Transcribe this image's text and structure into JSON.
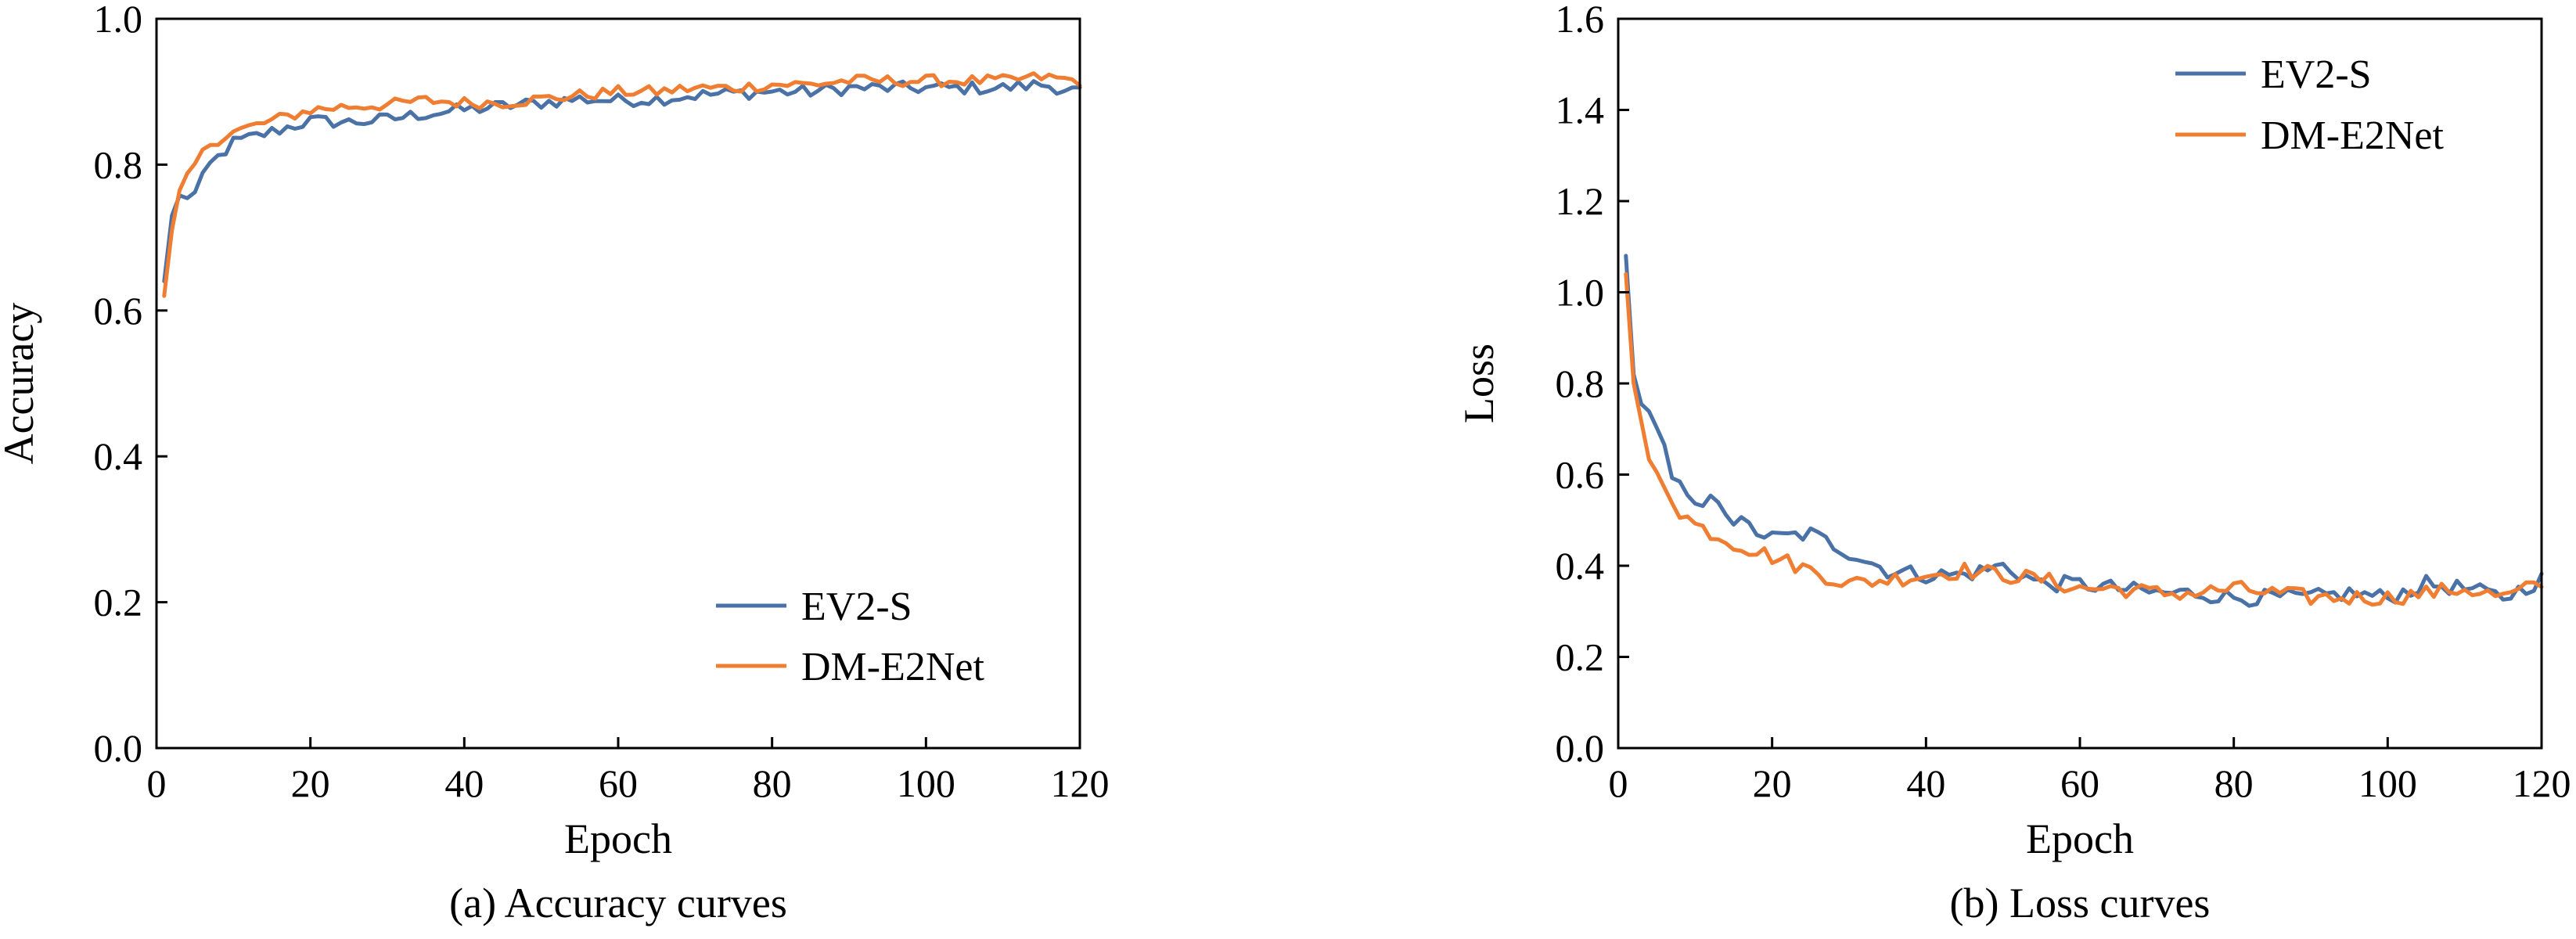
{
  "chart_data": [
    {
      "type": "line",
      "caption": "(a) Accuracy curves",
      "xlabel": "Epoch",
      "ylabel": "Accuracy",
      "xlim": [
        0,
        120
      ],
      "ylim": [
        0.0,
        1.0
      ],
      "xticks": [
        "0",
        "20",
        "40",
        "60",
        "80",
        "100",
        "120"
      ],
      "yticks": [
        "0.0",
        "0.2",
        "0.4",
        "0.6",
        "0.8",
        "1.0"
      ],
      "grid": false,
      "legend_position": "bottom-right",
      "series": [
        {
          "name": "EV2-S",
          "color": "#4a72a6",
          "anchors": [
            [
              1,
              0.64
            ],
            [
              2,
              0.73
            ],
            [
              3,
              0.755
            ],
            [
              5,
              0.76
            ],
            [
              7,
              0.8
            ],
            [
              10,
              0.83
            ],
            [
              15,
              0.845
            ],
            [
              20,
              0.86
            ],
            [
              25,
              0.858
            ],
            [
              30,
              0.862
            ],
            [
              35,
              0.87
            ],
            [
              40,
              0.875
            ],
            [
              45,
              0.88
            ],
            [
              50,
              0.885
            ],
            [
              55,
              0.89
            ],
            [
              60,
              0.888
            ],
            [
              65,
              0.89
            ],
            [
              70,
              0.895
            ],
            [
              75,
              0.898
            ],
            [
              80,
              0.9
            ],
            [
              85,
              0.9
            ],
            [
              90,
              0.905
            ],
            [
              95,
              0.905
            ],
            [
              100,
              0.905
            ],
            [
              105,
              0.905
            ],
            [
              110,
              0.905
            ],
            [
              115,
              0.91
            ],
            [
              120,
              0.9
            ]
          ],
          "noise": 0.009
        },
        {
          "name": "DM-E2Net",
          "color": "#ef7d32",
          "anchors": [
            [
              1,
              0.62
            ],
            [
              2,
              0.71
            ],
            [
              3,
              0.76
            ],
            [
              5,
              0.8
            ],
            [
              7,
              0.83
            ],
            [
              10,
              0.845
            ],
            [
              15,
              0.86
            ],
            [
              20,
              0.875
            ],
            [
              25,
              0.88
            ],
            [
              30,
              0.882
            ],
            [
              35,
              0.888
            ],
            [
              40,
              0.885
            ],
            [
              45,
              0.885
            ],
            [
              50,
              0.89
            ],
            [
              55,
              0.895
            ],
            [
              60,
              0.9
            ],
            [
              65,
              0.9
            ],
            [
              70,
              0.905
            ],
            [
              75,
              0.905
            ],
            [
              80,
              0.91
            ],
            [
              85,
              0.91
            ],
            [
              90,
              0.915
            ],
            [
              95,
              0.915
            ],
            [
              100,
              0.915
            ],
            [
              105,
              0.915
            ],
            [
              110,
              0.915
            ],
            [
              115,
              0.92
            ],
            [
              120,
              0.915
            ]
          ],
          "noise": 0.008
        }
      ]
    },
    {
      "type": "line",
      "caption": "(b) Loss curves",
      "xlabel": "Epoch",
      "ylabel": "Loss",
      "xlim": [
        0,
        120
      ],
      "ylim": [
        0.0,
        1.6
      ],
      "xticks": [
        "0",
        "20",
        "40",
        "60",
        "80",
        "100",
        "120"
      ],
      "yticks": [
        "0.0",
        "0.2",
        "0.4",
        "0.6",
        "0.8",
        "1.0",
        "1.2",
        "1.4",
        "1.6"
      ],
      "grid": false,
      "legend_position": "top-right",
      "series": [
        {
          "name": "EV2-S",
          "color": "#4a72a6",
          "anchors": [
            [
              1,
              1.08
            ],
            [
              2,
              0.82
            ],
            [
              3,
              0.74
            ],
            [
              5,
              0.72
            ],
            [
              7,
              0.6
            ],
            [
              10,
              0.52
            ],
            [
              13,
              0.55
            ],
            [
              15,
              0.5
            ],
            [
              20,
              0.46
            ],
            [
              25,
              0.47
            ],
            [
              30,
              0.43
            ],
            [
              35,
              0.39
            ],
            [
              40,
              0.38
            ],
            [
              45,
              0.38
            ],
            [
              50,
              0.4
            ],
            [
              55,
              0.36
            ],
            [
              60,
              0.36
            ],
            [
              65,
              0.35
            ],
            [
              70,
              0.34
            ],
            [
              75,
              0.34
            ],
            [
              80,
              0.33
            ],
            [
              85,
              0.33
            ],
            [
              90,
              0.33
            ],
            [
              95,
              0.34
            ],
            [
              100,
              0.33
            ],
            [
              105,
              0.36
            ],
            [
              110,
              0.35
            ],
            [
              115,
              0.33
            ],
            [
              120,
              0.37
            ]
          ],
          "noise": 0.018
        },
        {
          "name": "DM-E2Net",
          "color": "#ef7d32",
          "anchors": [
            [
              1,
              1.04
            ],
            [
              2,
              0.8
            ],
            [
              3,
              0.72
            ],
            [
              4,
              0.62
            ],
            [
              6,
              0.58
            ],
            [
              8,
              0.52
            ],
            [
              10,
              0.49
            ],
            [
              15,
              0.45
            ],
            [
              20,
              0.42
            ],
            [
              25,
              0.39
            ],
            [
              30,
              0.36
            ],
            [
              35,
              0.37
            ],
            [
              40,
              0.38
            ],
            [
              45,
              0.39
            ],
            [
              50,
              0.38
            ],
            [
              55,
              0.37
            ],
            [
              60,
              0.35
            ],
            [
              65,
              0.35
            ],
            [
              70,
              0.34
            ],
            [
              75,
              0.34
            ],
            [
              80,
              0.35
            ],
            [
              85,
              0.34
            ],
            [
              90,
              0.33
            ],
            [
              95,
              0.33
            ],
            [
              100,
              0.33
            ],
            [
              105,
              0.34
            ],
            [
              110,
              0.35
            ],
            [
              115,
              0.33
            ],
            [
              120,
              0.36
            ]
          ],
          "noise": 0.018
        }
      ]
    }
  ]
}
